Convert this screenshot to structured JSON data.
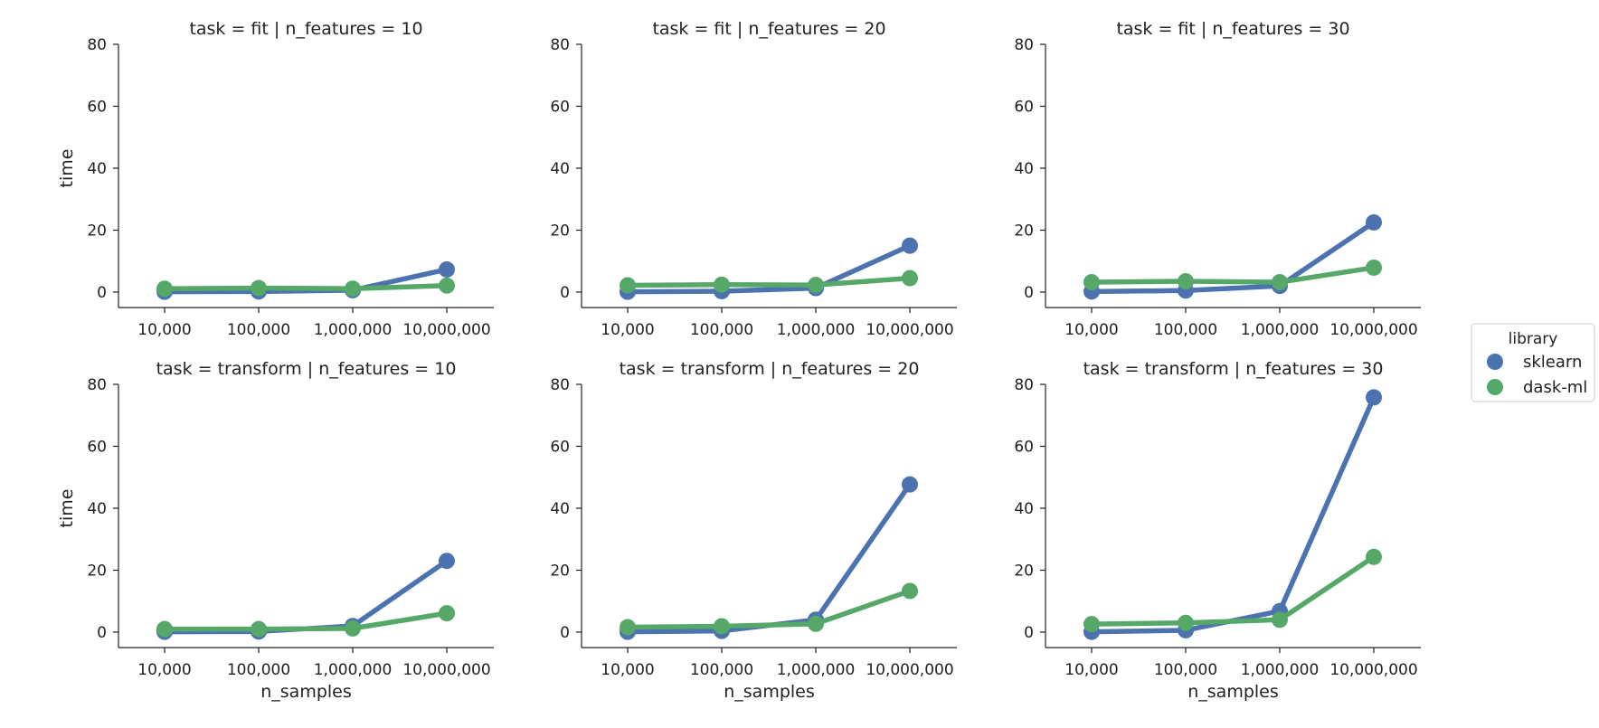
{
  "chart_data": {
    "type": "line",
    "ylabel": "time",
    "xlabel": "n_samples",
    "categories": [
      "10,000",
      "100,000",
      "1,000,000",
      "10,000,000"
    ],
    "ylim": [
      -5,
      80
    ],
    "yticks": [
      0,
      20,
      40,
      60,
      80
    ],
    "grid": false,
    "legend": {
      "title": "library",
      "placement": "right",
      "entries": [
        "sklearn",
        "dask-ml"
      ]
    },
    "colors": {
      "sklearn": "#4c72b0",
      "dask-ml": "#55a868"
    },
    "panels": [
      {
        "title": "task = fit | n_features = 10",
        "series": [
          {
            "name": "sklearn",
            "values": [
              0.1,
              0.2,
              0.6,
              7.3
            ]
          },
          {
            "name": "dask-ml",
            "values": [
              1.1,
              1.3,
              1.1,
              2.1
            ]
          }
        ]
      },
      {
        "title": "task = fit | n_features = 20",
        "series": [
          {
            "name": "sklearn",
            "values": [
              0.1,
              0.3,
              1.3,
              15.0
            ]
          },
          {
            "name": "dask-ml",
            "values": [
              2.2,
              2.4,
              2.3,
              4.5
            ]
          }
        ]
      },
      {
        "title": "task = fit | n_features = 30",
        "series": [
          {
            "name": "sklearn",
            "values": [
              0.2,
              0.5,
              2.0,
              22.5
            ]
          },
          {
            "name": "dask-ml",
            "values": [
              3.2,
              3.5,
              3.2,
              7.9
            ]
          }
        ]
      },
      {
        "title": "task = transform | n_features = 10",
        "series": [
          {
            "name": "sklearn",
            "values": [
              0.1,
              0.2,
              2.0,
              23.0
            ]
          },
          {
            "name": "dask-ml",
            "values": [
              1.0,
              1.0,
              1.2,
              6.1
            ]
          }
        ]
      },
      {
        "title": "task = transform | n_features = 20",
        "series": [
          {
            "name": "sklearn",
            "values": [
              0.1,
              0.4,
              4.0,
              47.7
            ]
          },
          {
            "name": "dask-ml",
            "values": [
              1.6,
              1.9,
              2.7,
              13.3
            ]
          }
        ]
      },
      {
        "title": "task = transform | n_features = 30",
        "series": [
          {
            "name": "sklearn",
            "values": [
              0.1,
              0.6,
              6.8,
              75.8
            ]
          },
          {
            "name": "dask-ml",
            "values": [
              2.6,
              3.0,
              4.0,
              24.3
            ]
          }
        ]
      }
    ]
  }
}
